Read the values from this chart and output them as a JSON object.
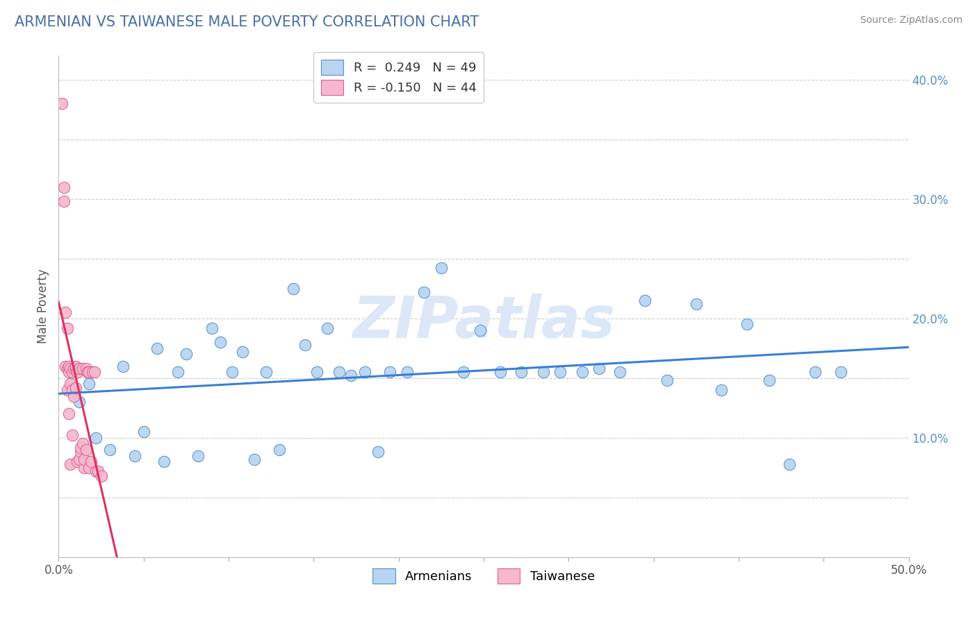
{
  "title": "ARMENIAN VS TAIWANESE MALE POVERTY CORRELATION CHART",
  "source_text": "Source: ZipAtlas.com",
  "ylabel": "Male Poverty",
  "xlim": [
    0.0,
    0.5
  ],
  "ylim": [
    0.0,
    0.42
  ],
  "xtick_pos": [
    0.0,
    0.05,
    0.1,
    0.15,
    0.2,
    0.25,
    0.3,
    0.35,
    0.4,
    0.45,
    0.5
  ],
  "xtick_labels": [
    "0.0%",
    "",
    "",
    "",
    "",
    "",
    "",
    "",
    "",
    "",
    "50.0%"
  ],
  "ytick_pos": [
    0.0,
    0.05,
    0.1,
    0.15,
    0.2,
    0.25,
    0.3,
    0.35,
    0.4
  ],
  "ytick_labels_right": [
    "",
    "",
    "10.0%",
    "",
    "20.0%",
    "",
    "30.0%",
    "",
    "40.0%"
  ],
  "legend_text1": "R =  0.249   N = 49",
  "legend_text2": "R = -0.150   N = 44",
  "armenian_face": "#b8d4f0",
  "armenian_edge": "#5590d0",
  "taiwanese_face": "#f5b8ce",
  "taiwanese_edge": "#e06090",
  "arm_line_color": "#3a7fd5",
  "tai_line_color": "#e03060",
  "title_color": "#4a6fa5",
  "watermark_color": "#dce8f8",
  "source_color": "#888888",
  "label_color": "#555555",
  "right_tick_color": "#5590d0",
  "grid_color": "#cccccc",
  "background": "#ffffff",
  "arm_x": [
    0.012,
    0.018,
    0.022,
    0.03,
    0.038,
    0.045,
    0.05,
    0.058,
    0.062,
    0.07,
    0.075,
    0.082,
    0.09,
    0.095,
    0.102,
    0.108,
    0.115,
    0.122,
    0.13,
    0.138,
    0.145,
    0.152,
    0.158,
    0.165,
    0.172,
    0.18,
    0.188,
    0.195,
    0.205,
    0.215,
    0.225,
    0.238,
    0.248,
    0.26,
    0.272,
    0.285,
    0.295,
    0.308,
    0.318,
    0.33,
    0.345,
    0.358,
    0.375,
    0.39,
    0.405,
    0.418,
    0.43,
    0.445,
    0.46
  ],
  "arm_y": [
    0.13,
    0.145,
    0.1,
    0.09,
    0.16,
    0.085,
    0.105,
    0.175,
    0.08,
    0.155,
    0.17,
    0.085,
    0.192,
    0.18,
    0.155,
    0.172,
    0.082,
    0.155,
    0.09,
    0.225,
    0.178,
    0.155,
    0.192,
    0.155,
    0.152,
    0.155,
    0.088,
    0.155,
    0.155,
    0.222,
    0.242,
    0.155,
    0.19,
    0.155,
    0.155,
    0.155,
    0.155,
    0.155,
    0.158,
    0.155,
    0.215,
    0.148,
    0.212,
    0.14,
    0.195,
    0.148,
    0.078,
    0.155,
    0.155
  ],
  "tai_x": [
    0.002,
    0.003,
    0.003,
    0.004,
    0.004,
    0.005,
    0.005,
    0.005,
    0.006,
    0.006,
    0.006,
    0.007,
    0.007,
    0.007,
    0.008,
    0.008,
    0.008,
    0.009,
    0.009,
    0.01,
    0.01,
    0.01,
    0.011,
    0.011,
    0.012,
    0.012,
    0.013,
    0.013,
    0.014,
    0.014,
    0.015,
    0.015,
    0.016,
    0.016,
    0.017,
    0.017,
    0.018,
    0.018,
    0.019,
    0.02,
    0.021,
    0.022,
    0.023,
    0.025
  ],
  "tai_y": [
    0.38,
    0.31,
    0.298,
    0.205,
    0.16,
    0.192,
    0.158,
    0.14,
    0.16,
    0.155,
    0.12,
    0.158,
    0.145,
    0.078,
    0.155,
    0.14,
    0.102,
    0.158,
    0.135,
    0.158,
    0.142,
    0.16,
    0.155,
    0.08,
    0.082,
    0.158,
    0.088,
    0.092,
    0.095,
    0.158,
    0.075,
    0.082,
    0.09,
    0.158,
    0.155,
    0.155,
    0.155,
    0.075,
    0.08,
    0.155,
    0.155,
    0.072,
    0.072,
    0.068
  ]
}
